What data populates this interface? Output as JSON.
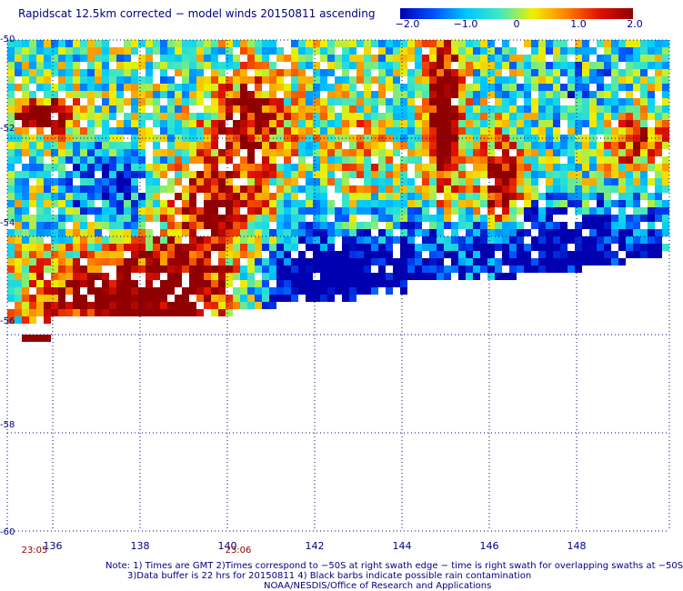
{
  "title": "Rapidscat 12.5km corrected − model winds 20150811 ascending",
  "colorbar": {
    "labels": [
      "−2.0",
      "−1.0",
      "0",
      "1.0",
      "2.0"
    ],
    "values": [
      -2,
      -1,
      0,
      1,
      2
    ],
    "range": [
      -2,
      2
    ],
    "stops": [
      "#0000b0",
      "#0050ff",
      "#00c8ff",
      "#40e8c0",
      "#f0f000",
      "#ff8000",
      "#e01000",
      "#900000"
    ]
  },
  "map": {
    "lon_range": [
      135.5,
      150
    ],
    "lat_range": [
      -60,
      -50
    ],
    "lat_labels": [
      {
        "value": -50,
        "text": "-50"
      },
      {
        "value": -52,
        "text": "-52"
      },
      {
        "value": -54,
        "text": "-54"
      },
      {
        "value": -56,
        "text": "-56"
      },
      {
        "value": -58,
        "text": "-58"
      },
      {
        "value": -60,
        "text": "-60"
      }
    ],
    "lon_labels": [
      {
        "value": 136,
        "text": "136"
      },
      {
        "value": 138,
        "text": "138"
      },
      {
        "value": 140,
        "text": "140"
      },
      {
        "value": 142,
        "text": "142"
      },
      {
        "value": 144,
        "text": "144"
      },
      {
        "value": 146,
        "text": "146"
      },
      {
        "value": 148,
        "text": "148"
      }
    ],
    "time_labels": [
      {
        "lon": 135.8,
        "text": "23:05"
      },
      {
        "lon": 140.2,
        "text": "23:06"
      }
    ],
    "grid_color": "#000080"
  },
  "notes": [
    "Note: 1) Times are GMT 2)Times correspond to −50S at right swath edge − time is right swath for overlapping swaths at −50S",
    "3)Data buffer is 22 hrs for 20150811 4) Black barbs indicate possible rain contamination",
    "NOAA/NESDIS/Office of Research and Applications"
  ]
}
